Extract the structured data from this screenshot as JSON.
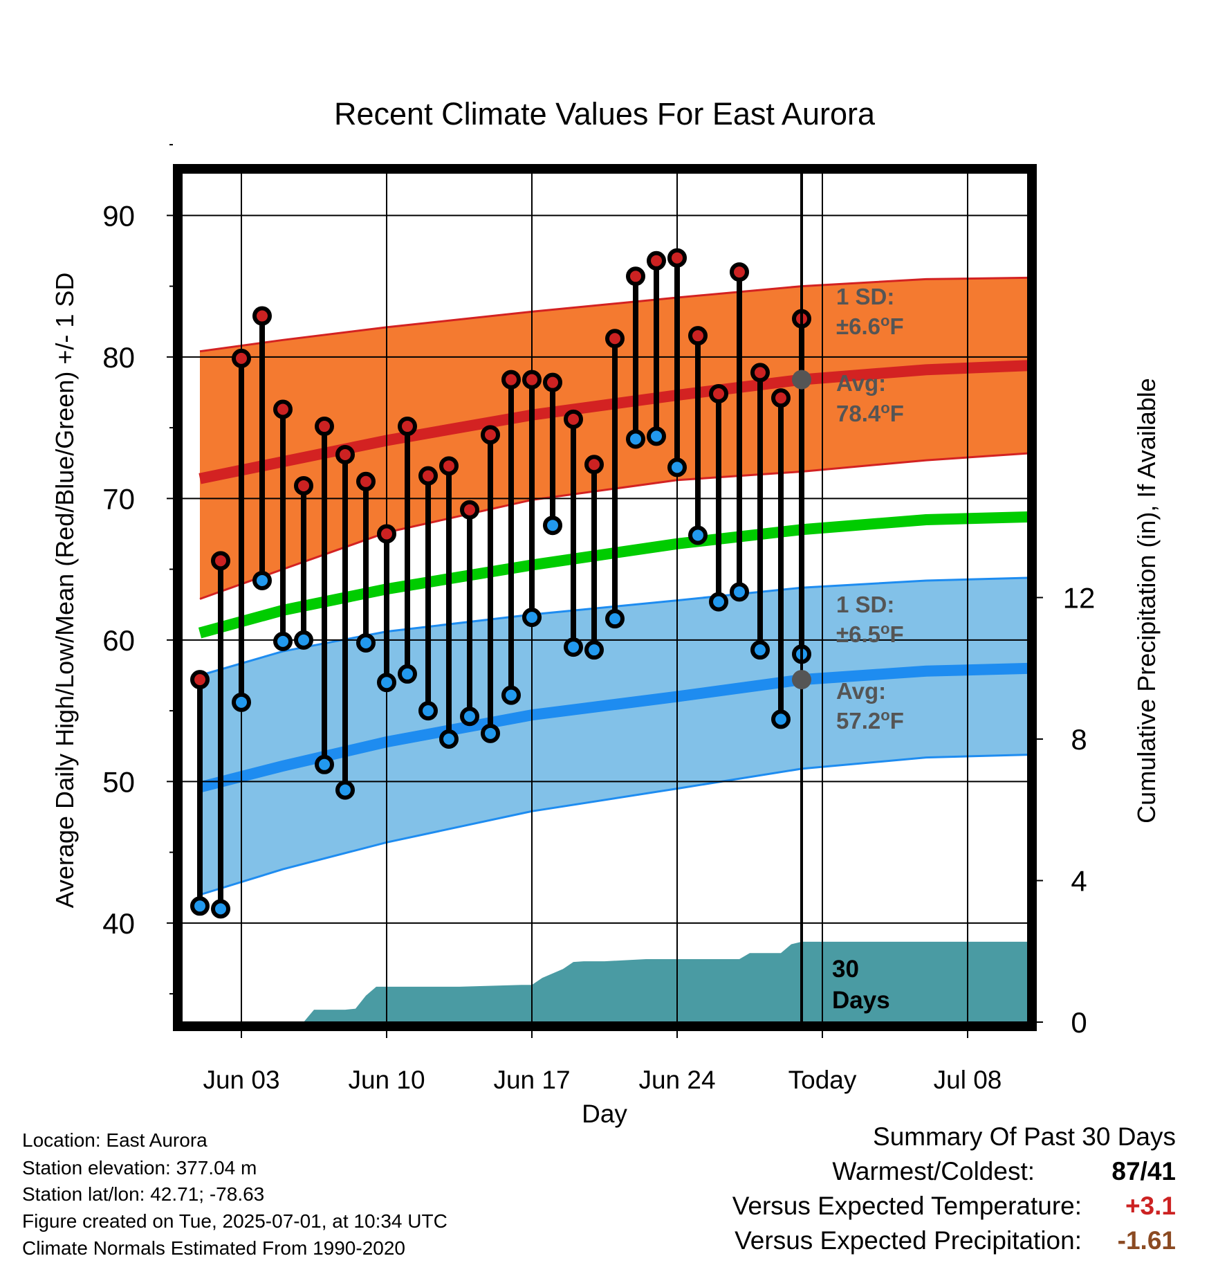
{
  "chart_data": {
    "type": "line",
    "title": "Recent Climate Values For East Aurora",
    "xlabel": "Day",
    "ylabel": "Average Daily High/Low/Mean (Red/Blue/Green) +/- 1 SD",
    "y2label": "Cumulative Precipitation (in), If Available",
    "ylim": [
      33,
      93
    ],
    "y2lim": [
      0,
      24
    ],
    "x_ticks": [
      "Jun 03",
      "Jun 10",
      "Jun 17",
      "Jun 24",
      "Today",
      "Jul 08"
    ],
    "y_ticks": [
      40,
      50,
      60,
      70,
      80,
      90
    ],
    "y2_ticks": [
      0,
      4,
      8,
      12
    ],
    "grid": true,
    "colors": {
      "high_band": "#f47a30",
      "high_line": "#d32222",
      "low_band": "#82c1e8",
      "low_line": "#1e8cf0",
      "mean_line": "#00cc00",
      "precip": "#4a9ba3",
      "high_dot": "#cc2222",
      "low_dot": "#2299ee",
      "today_dot": "#555555"
    },
    "days": [
      "Jun 01",
      "Jun 02",
      "Jun 03",
      "Jun 04",
      "Jun 05",
      "Jun 06",
      "Jun 07",
      "Jun 08",
      "Jun 09",
      "Jun 10",
      "Jun 11",
      "Jun 12",
      "Jun 13",
      "Jun 14",
      "Jun 15",
      "Jun 16",
      "Jun 17",
      "Jun 18",
      "Jun 19",
      "Jun 20",
      "Jun 21",
      "Jun 22",
      "Jun 23",
      "Jun 24",
      "Jun 25",
      "Jun 26",
      "Jun 27",
      "Jun 28",
      "Jun 29",
      "Jun 30"
    ],
    "observed_high": [
      57.2,
      65.6,
      79.9,
      82.9,
      76.3,
      70.9,
      75.1,
      73.1,
      71.2,
      67.5,
      75.1,
      71.6,
      72.3,
      69.2,
      74.5,
      78.4,
      78.4,
      78.2,
      75.6,
      72.4,
      81.3,
      85.7,
      86.8,
      87.0,
      81.5,
      77.4,
      86.0,
      78.9,
      77.1,
      82.7
    ],
    "observed_low": [
      41.2,
      41.0,
      55.6,
      64.2,
      59.9,
      60.0,
      51.2,
      49.4,
      59.8,
      57.0,
      57.6,
      55.0,
      53.0,
      54.6,
      53.4,
      56.1,
      61.6,
      68.1,
      59.5,
      59.3,
      61.5,
      74.2,
      74.4,
      72.2,
      67.4,
      62.7,
      63.4,
      59.3,
      54.4,
      59.0
    ],
    "normals": {
      "x": [
        0.5,
        4.5,
        9.5,
        16.5,
        23.5,
        29.5,
        35.5,
        40.5
      ],
      "high_avg": [
        71.4,
        72.6,
        74.1,
        75.9,
        77.3,
        78.4,
        79.1,
        79.4
      ],
      "high_sd_upper": [
        80.4,
        81.2,
        82.1,
        83.2,
        84.2,
        85.0,
        85.5,
        85.6
      ],
      "high_sd_lower": [
        62.9,
        65.0,
        67.6,
        69.9,
        71.3,
        71.9,
        72.7,
        73.2
      ],
      "low_avg": [
        49.6,
        51.1,
        52.8,
        54.7,
        56.0,
        57.2,
        57.8,
        58.0
      ],
      "low_sd_upper": [
        57.5,
        59.2,
        60.6,
        61.8,
        62.8,
        63.7,
        64.2,
        64.4
      ],
      "low_sd_lower": [
        42.0,
        43.8,
        45.7,
        47.9,
        49.5,
        50.9,
        51.7,
        51.9
      ],
      "mean_avg": [
        60.5,
        62.1,
        63.6,
        65.3,
        66.8,
        67.8,
        68.5,
        68.7
      ]
    },
    "precip_cumulative": {
      "x": [
        0.5,
        5.5,
        6.0,
        7.5,
        8.0,
        8.5,
        9.0,
        9.5,
        10.0,
        13.0,
        16.0,
        16.5,
        17.0,
        18.0,
        18.5,
        19.0,
        20.0,
        22.0,
        24.0,
        26.0,
        26.5,
        27.0,
        28.0,
        28.5,
        29.0,
        29.5,
        30.0,
        40.5
      ],
      "y": [
        0,
        0,
        0.35,
        0.35,
        0.38,
        0.75,
        1.0,
        1.0,
        1.0,
        1.0,
        1.05,
        1.05,
        1.25,
        1.5,
        1.7,
        1.72,
        1.72,
        1.78,
        1.78,
        1.78,
        1.78,
        1.95,
        1.95,
        1.95,
        2.2,
        2.27,
        2.27,
        2.27
      ]
    },
    "today_index": 29.5,
    "annotations": {
      "high_sd_label": "1 SD:",
      "high_sd_value": "±6.6",
      "high_avg_label": "Avg:",
      "high_avg_value": "78.4",
      "low_sd_label": "1 SD:",
      "low_sd_value": "±6.5",
      "low_avg_label": "Avg:",
      "low_avg_value": "57.2",
      "degree_unit_sup": "o",
      "degree_unit": "F",
      "precip_days_line1": "30",
      "precip_days_line2": "Days"
    }
  },
  "info": {
    "location": "Location: East Aurora",
    "elevation": "Station elevation: 377.04 m",
    "latlon": "Station lat/lon: 42.71; -78.63",
    "created": "Figure created on Tue, 2025-07-01, at 10:34 UTC",
    "normals": "Climate Normals Estimated From 1990-2020"
  },
  "summary": {
    "heading": "Summary Of Past 30 Days",
    "warm_cold_label": "Warmest/Coldest:",
    "warm_cold_value": "87/41",
    "temp_label": "Versus Expected Temperature:",
    "temp_value": "+3.1",
    "temp_color": "#cc2222",
    "precip_label": "Versus Expected Precipitation:",
    "precip_value": "-1.61",
    "precip_color": "#8b4a22"
  }
}
